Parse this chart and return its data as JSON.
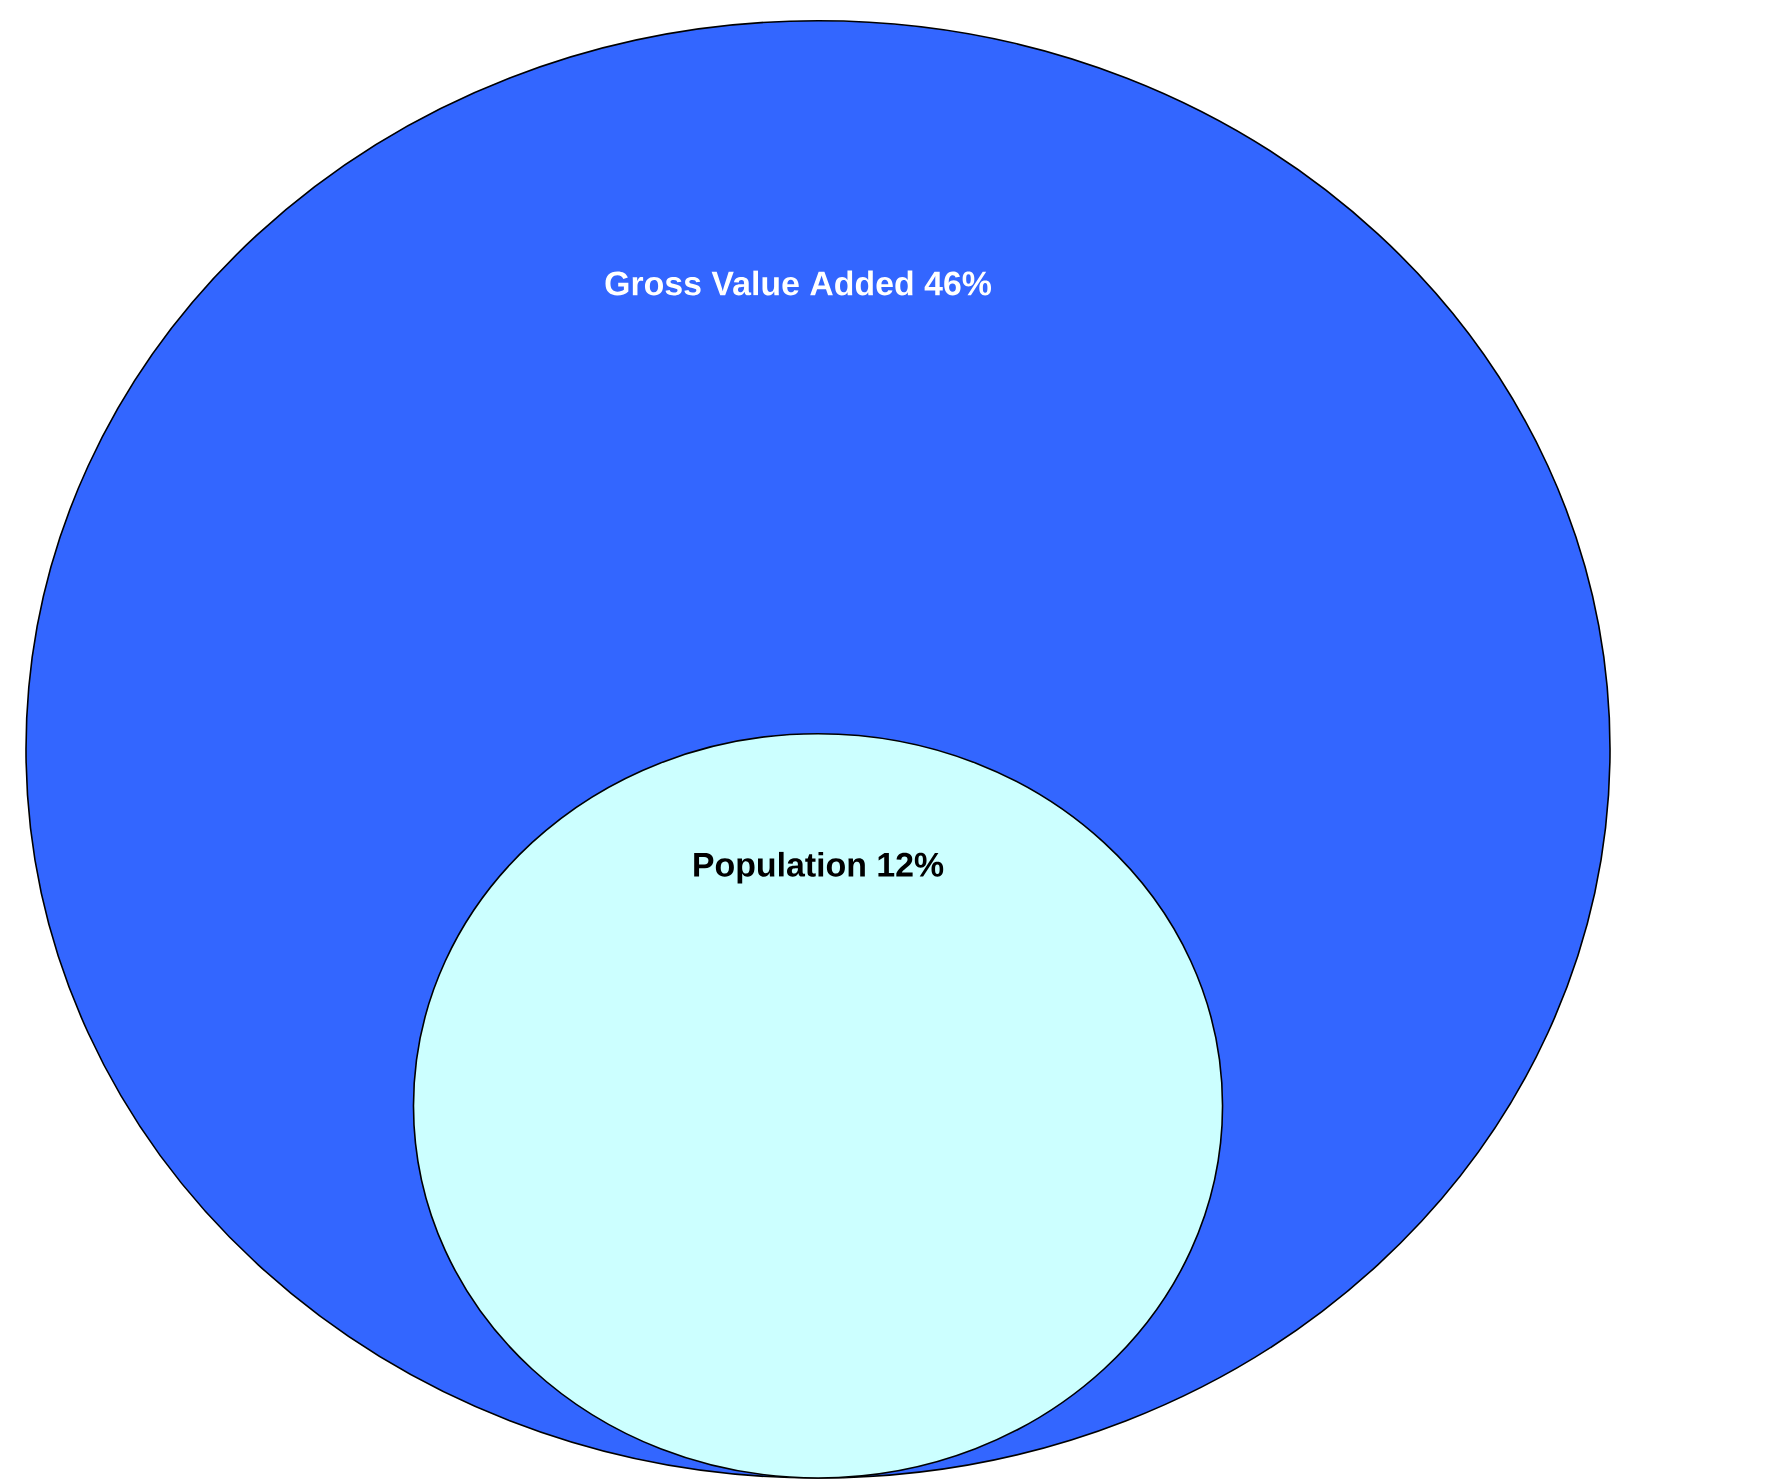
{
  "chart_data": {
    "type": "other",
    "categories": [
      "Gross Value Added",
      "Population"
    ],
    "values": [
      46,
      12
    ],
    "value_labels": [
      "46%",
      "12%"
    ],
    "colors": [
      "#3366ff",
      "#ccffff"
    ]
  }
}
